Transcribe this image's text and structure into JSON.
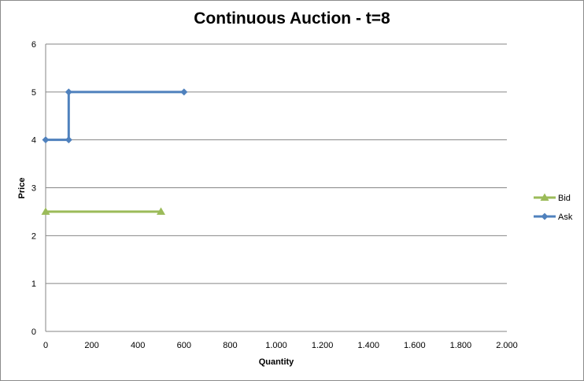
{
  "chart_data": {
    "type": "line",
    "title": "Continuous Auction - t=8",
    "xlabel": "Quantity",
    "ylabel": "Price",
    "xlim": [
      0,
      2000
    ],
    "ylim": [
      0,
      6
    ],
    "x_ticks": [
      {
        "value": 0,
        "label": "0"
      },
      {
        "value": 200,
        "label": "200"
      },
      {
        "value": 400,
        "label": "400"
      },
      {
        "value": 600,
        "label": "600"
      },
      {
        "value": 800,
        "label": "800"
      },
      {
        "value": 1000,
        "label": "1.000"
      },
      {
        "value": 1200,
        "label": "1.200"
      },
      {
        "value": 1400,
        "label": "1.400"
      },
      {
        "value": 1600,
        "label": "1.600"
      },
      {
        "value": 1800,
        "label": "1.800"
      },
      {
        "value": 2000,
        "label": "2.000"
      }
    ],
    "y_ticks": [
      {
        "value": 0,
        "label": "0"
      },
      {
        "value": 1,
        "label": "1"
      },
      {
        "value": 2,
        "label": "2"
      },
      {
        "value": 3,
        "label": "3"
      },
      {
        "value": 4,
        "label": "4"
      },
      {
        "value": 5,
        "label": "5"
      },
      {
        "value": 6,
        "label": "6"
      }
    ],
    "grid": "horizontal",
    "legend_position": "right",
    "series": [
      {
        "name": "Bid",
        "color": "#9BBB59",
        "marker": "triangle",
        "points": [
          [
            0,
            2.5
          ],
          [
            500,
            2.5
          ]
        ]
      },
      {
        "name": "Ask",
        "color": "#4F81BD",
        "marker": "diamond",
        "points": [
          [
            0,
            4
          ],
          [
            100,
            4
          ],
          [
            100,
            5
          ],
          [
            600,
            5
          ]
        ]
      }
    ]
  }
}
